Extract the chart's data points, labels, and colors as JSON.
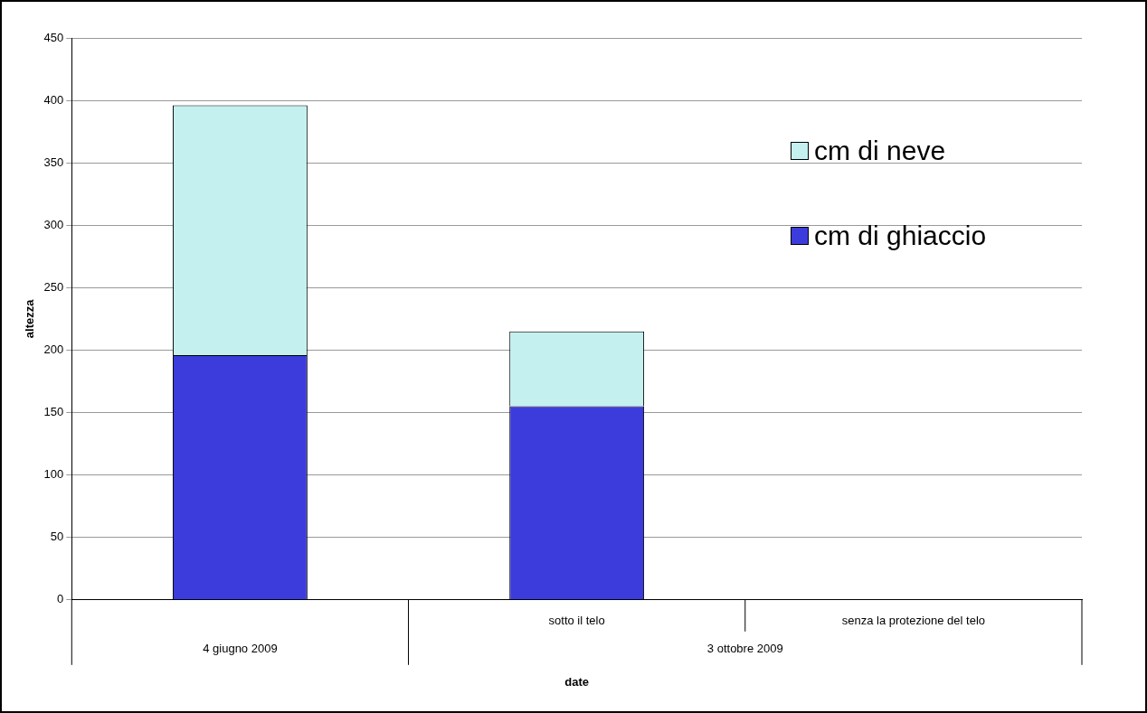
{
  "chart_data": {
    "type": "bar",
    "stacked": true,
    "xlabel": "date",
    "ylabel": "altezza",
    "categories": [
      null,
      "sotto il telo",
      "senza la protezione del telo"
    ],
    "series": [
      {
        "name": "cm di ghiaccio",
        "color": "#3c3cdc",
        "values": [
          196,
          155,
          null
        ]
      },
      {
        "name": "cm di neve",
        "color": "#c4f0f0",
        "values": [
          200,
          60,
          null
        ]
      }
    ],
    "ylim": [
      0,
      450
    ],
    "yticks": [
      0,
      50,
      100,
      150,
      200,
      250,
      300,
      350,
      400,
      450
    ],
    "grid": "y",
    "legend": "right",
    "annotations": [
      "4 giugno 2009",
      "3 ottobre 2009"
    ]
  }
}
